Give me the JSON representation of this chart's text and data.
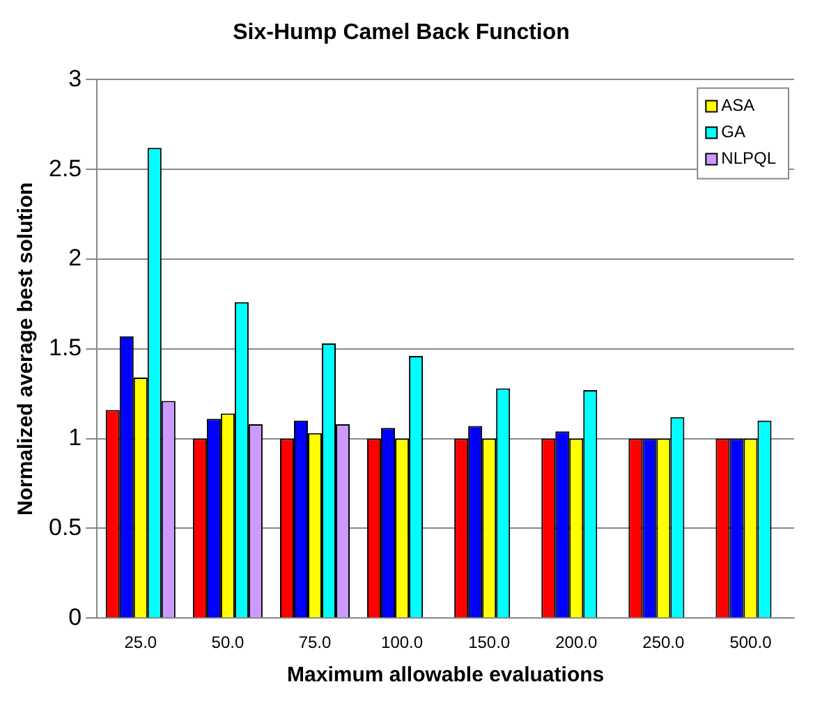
{
  "chart_data": {
    "type": "bar",
    "title": "Six-Hump Camel Back Function",
    "xlabel": "Maximum allowable evaluations",
    "ylabel": "Normalized average best solution",
    "categories": [
      "25.0",
      "50.0",
      "75.0",
      "100.0",
      "150.0",
      "200.0",
      "250.0",
      "500.0"
    ],
    "series": [
      {
        "color": "#ff0000",
        "values": [
          1.16,
          1.0,
          1.0,
          1.0,
          1.0,
          1.0,
          1.0,
          1.0
        ]
      },
      {
        "color": "#0000ff",
        "values": [
          1.57,
          1.11,
          1.1,
          1.06,
          1.07,
          1.04,
          1.0,
          1.0
        ]
      },
      {
        "name": "ASA",
        "color": "#ffff00",
        "values": [
          1.34,
          1.14,
          1.03,
          1.0,
          1.0,
          1.0,
          1.0,
          1.0
        ]
      },
      {
        "name": "GA",
        "color": "#00ffff",
        "values": [
          2.62,
          1.76,
          1.53,
          1.46,
          1.28,
          1.27,
          1.12,
          1.1
        ]
      },
      {
        "name": "NLPQL",
        "color": "#cc99ff",
        "values": [
          1.21,
          1.08,
          1.08,
          null,
          null,
          null,
          null,
          null
        ]
      }
    ],
    "ylim": [
      0,
      3
    ],
    "yticks": [
      0,
      0.5,
      1,
      1.5,
      2,
      2.5,
      3
    ],
    "grid": "y",
    "legend": "top right"
  }
}
